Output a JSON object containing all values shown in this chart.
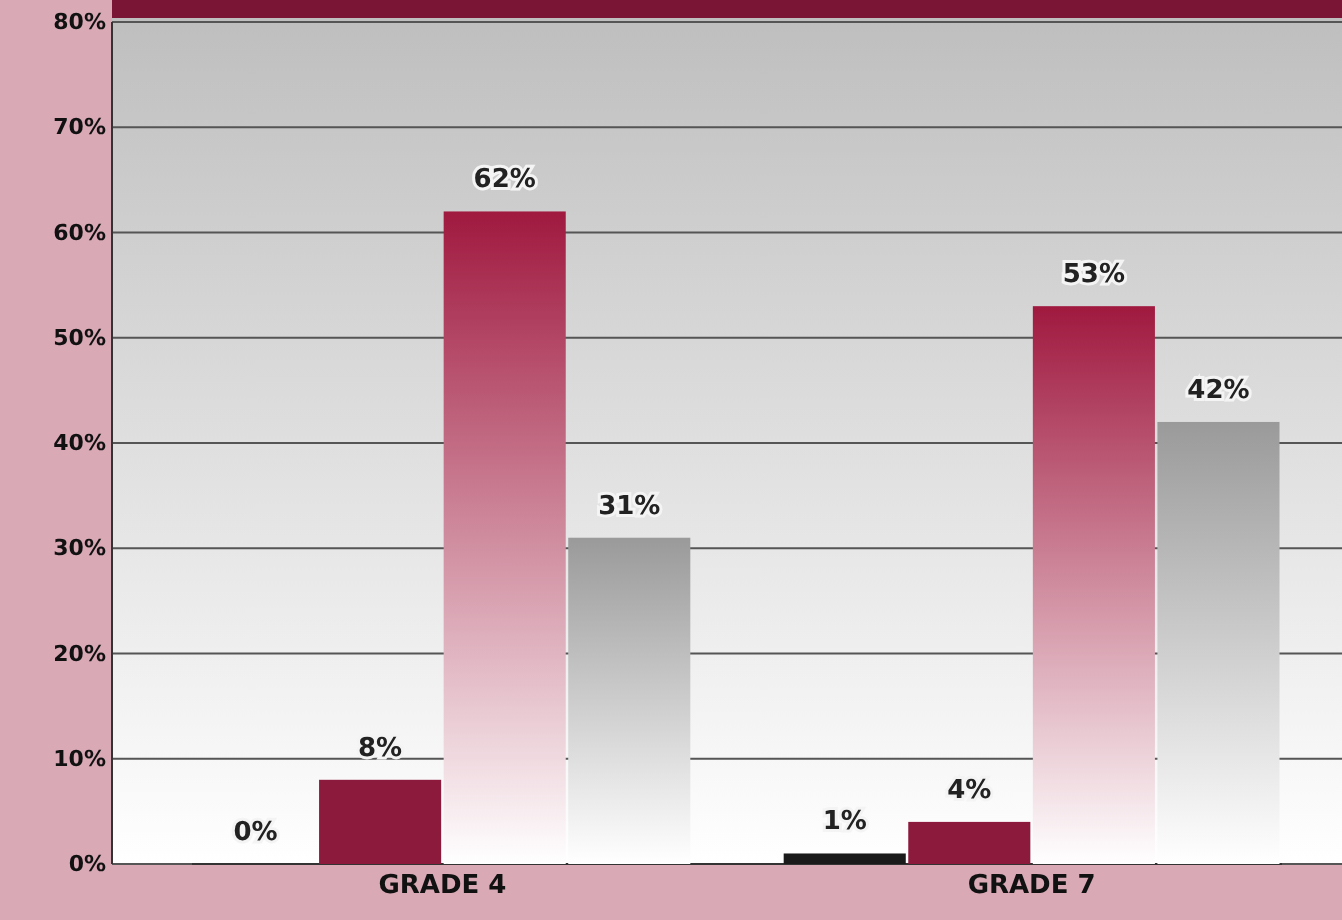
{
  "chart_data": {
    "type": "bar",
    "categories": [
      "GRADE 4",
      "GRADE 7"
    ],
    "series": [
      {
        "color": "#1a1a1a",
        "values": [
          0,
          1
        ]
      },
      {
        "color": "#8b1a3c",
        "values": [
          8,
          4
        ]
      },
      {
        "color": "#a0193f",
        "values": [
          62,
          53
        ]
      },
      {
        "color": "#9a9a9a",
        "values": [
          31,
          42
        ]
      }
    ],
    "ylim": [
      0,
      80
    ],
    "yticks": [
      {
        "value": 0,
        "label": "0%"
      },
      {
        "value": 10,
        "label": "10%"
      },
      {
        "value": 20,
        "label": "20%"
      },
      {
        "value": 30,
        "label": "30%"
      },
      {
        "value": 40,
        "label": "40%"
      },
      {
        "value": 50,
        "label": "50%"
      },
      {
        "value": 60,
        "label": "60%"
      },
      {
        "value": 70,
        "label": "70%"
      },
      {
        "value": 80,
        "label": "80%"
      }
    ],
    "grid": "y",
    "value_labels": [
      [
        "0%",
        "1%"
      ],
      [
        "8%",
        "4%"
      ],
      [
        "62%",
        "53%"
      ],
      [
        "31%",
        "42%"
      ]
    ]
  }
}
